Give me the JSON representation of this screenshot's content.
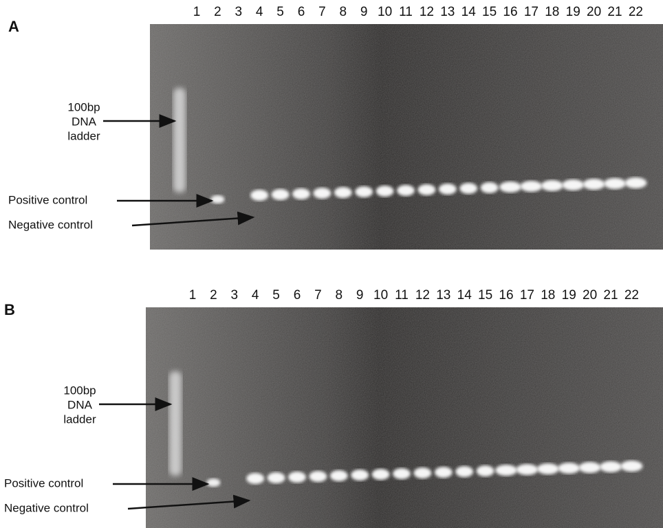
{
  "panels": [
    {
      "label": "A",
      "lanes": [
        "1",
        "2",
        "3",
        "4",
        "5",
        "6",
        "7",
        "8",
        "9",
        "10",
        "11",
        "12",
        "13",
        "14",
        "15",
        "16",
        "17",
        "18",
        "19",
        "20",
        "21",
        "22"
      ],
      "ladder_label": [
        "100bp",
        "DNA",
        "ladder"
      ],
      "positive_label": "Positive control",
      "negative_label": "Negative control"
    },
    {
      "label": "B",
      "lanes": [
        "1",
        "2",
        "3",
        "4",
        "5",
        "6",
        "7",
        "8",
        "9",
        "10",
        "11",
        "12",
        "13",
        "14",
        "15",
        "16",
        "17",
        "18",
        "19",
        "20",
        "21",
        "22"
      ],
      "ladder_label": [
        "100bp",
        "DNA",
        "ladder"
      ],
      "positive_label": "Positive control",
      "negative_label": "Negative control"
    }
  ]
}
